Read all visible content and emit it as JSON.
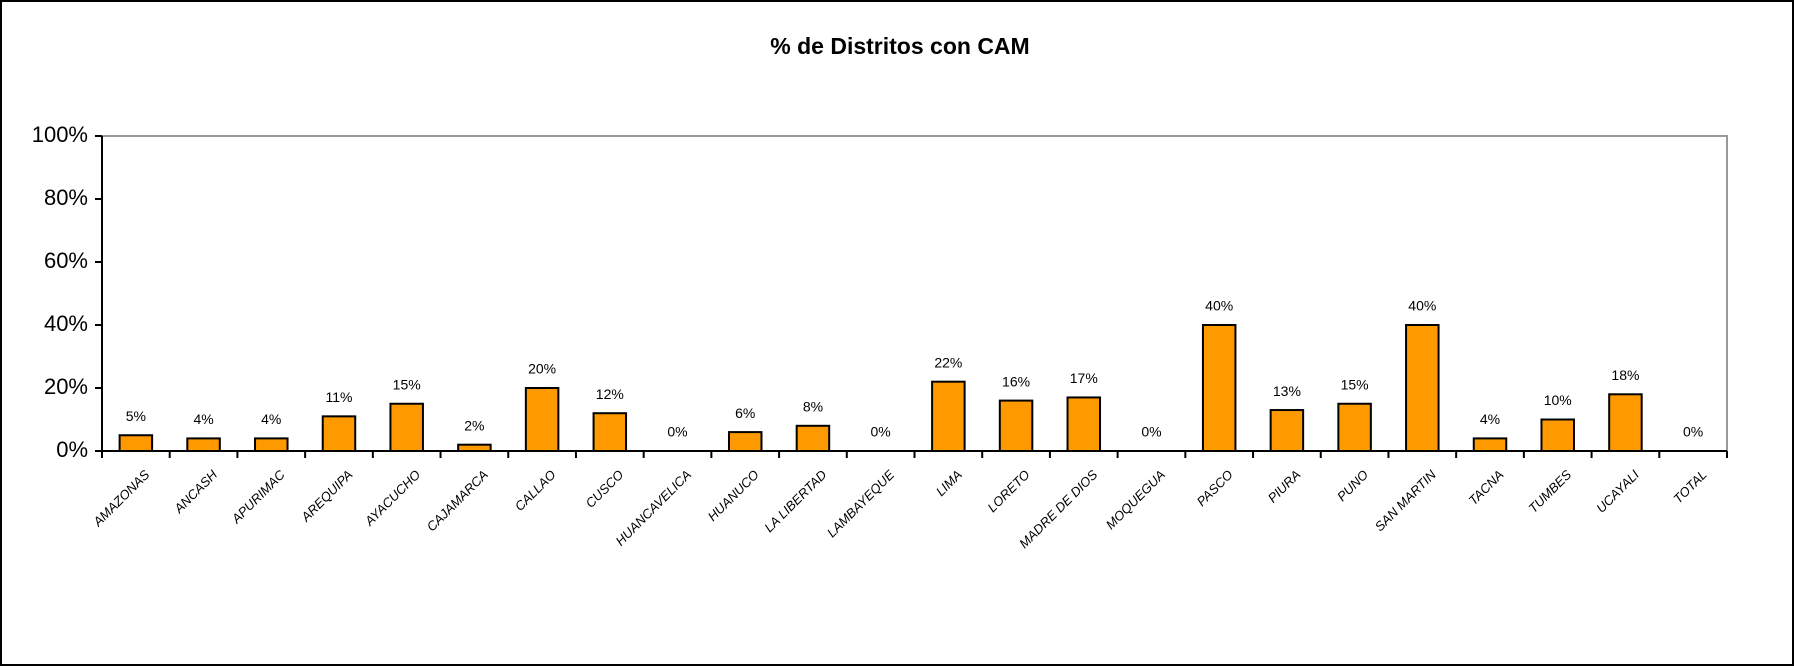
{
  "chart_data": {
    "type": "bar",
    "title": "% de Distritos con CAM",
    "categories": [
      "AMAZONAS",
      "ANCASH",
      "APURIMAC",
      "AREQUIPA",
      "AYACUCHO",
      "CAJAMARCA",
      "CALLAO",
      "CUSCO",
      "HUANCAVELICA",
      "HUANUCO",
      "LA LIBERTAD",
      "LAMBAYEQUE",
      "LIMA",
      "LORETO",
      "MADRE DE DIOS",
      "MOQUEGUA",
      "PASCO",
      "PIURA",
      "PUNO",
      "SAN MARTIN",
      "TACNA",
      "TUMBES",
      "UCAYALI",
      "TOTAL"
    ],
    "values": [
      5,
      4,
      4,
      11,
      15,
      2,
      20,
      12,
      0,
      6,
      8,
      0,
      22,
      16,
      17,
      0,
      40,
      13,
      15,
      40,
      4,
      10,
      18,
      0
    ],
    "value_labels": [
      "5%",
      "4%",
      "4%",
      "11%",
      "15%",
      "2%",
      "20%",
      "12%",
      "0%",
      "6%",
      "8%",
      "0%",
      "22%",
      "16%",
      "17%",
      "0%",
      "40%",
      "13%",
      "15%",
      "40%",
      "4%",
      "10%",
      "18%",
      "0%"
    ],
    "color": "#ff9900",
    "ylim": [
      0,
      100
    ],
    "yticks": [
      {
        "value": 0,
        "label": "0%"
      },
      {
        "value": 20,
        "label": "20%"
      },
      {
        "value": 40,
        "label": "40%"
      },
      {
        "value": 60,
        "label": "60%"
      },
      {
        "value": 80,
        "label": "80%"
      },
      {
        "value": 100,
        "label": "100%"
      }
    ],
    "grid": false
  }
}
